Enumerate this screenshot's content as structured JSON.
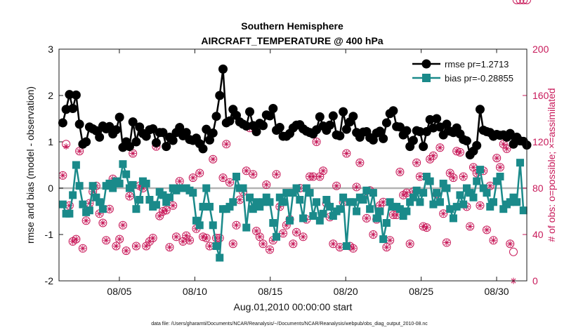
{
  "chart_data": {
    "type": "line",
    "title": "Southern Hemisphere",
    "subtitle": "AIRCRAFT_TEMPERATURE @ 400 hPa",
    "xlabel": "Aug.01,2010 00:00:00 start",
    "ylabel": "rmse and bias (model - observation)",
    "ylabel_right": "# of obs: o=possible; ×=assimilated",
    "footnote": "data file: /Users/gharamti/Documents/NCAR/Reanalysis/~/Documents/NCAR/Reanalysis/webpub/obs_diag_output_2010-08.nc",
    "xlim": [
      1.0,
      32.0
    ],
    "ylim": [
      -2,
      3
    ],
    "ylim_right": [
      0,
      200
    ],
    "x_ticks": [
      5,
      10,
      15,
      20,
      25,
      30
    ],
    "x_tick_labels": [
      "08/05",
      "08/10",
      "08/15",
      "08/20",
      "08/25",
      "08/30"
    ],
    "y_ticks": [
      -2,
      -1,
      0,
      1,
      2,
      3
    ],
    "y_ticks_right": [
      0,
      40,
      80,
      120,
      160,
      200
    ],
    "zero_line": 0,
    "legend": {
      "placement": "top-right"
    },
    "colors": {
      "rmse": "#000000",
      "bias": "#1a8a8a",
      "obs": "#c81a5a",
      "zero": "#b3b3b3"
    },
    "series": [
      {
        "name": "rmse pr=1.2713",
        "marker": "circle",
        "values": [
          1.41,
          1.7,
          2.02,
          1.72,
          2.01,
          1.38,
          0.95,
          1.0,
          1.32,
          1.28,
          1.24,
          1.1,
          1.34,
          1.28,
          1.33,
          1.17,
          1.26,
          1.53,
          0.88,
          1.0,
          0.9,
          1.43,
          1.0,
          1.32,
          1.18,
          1.12,
          1.26,
          1.28,
          0.98,
          1.2,
          1.2,
          0.9,
          1.1,
          1.03,
          1.2,
          1.31,
          1.13,
          1.2,
          1.05,
          1.03,
          1.08,
          0.96,
          0.85,
          1.27,
          1.04,
          1.19,
          1.55,
          2.0,
          2.57,
          1.41,
          1.45,
          1.7,
          1.57,
          1.43,
          1.38,
          1.34,
          1.65,
          1.35,
          1.22,
          1.4,
          1.35,
          1.58,
          1.56,
          1.72,
          1.25,
          1.31,
          1.12,
          1.12,
          1.18,
          1.3,
          1.36,
          1.37,
          1.28,
          1.23,
          1.2,
          1.17,
          1.26,
          1.54,
          1.34,
          1.25,
          1.36,
          1.56,
          1.15,
          1.13,
          1.65,
          1.27,
          1.43,
          1.55,
          1.2,
          1.1,
          1.21,
          1.22,
          1.09,
          1.04,
          1.19,
          1.23,
          1.07,
          1.41,
          1.61,
          1.67,
          1.33,
          1.32,
          1.15,
          1.24,
          0.9,
          1.03,
          1.24,
          1.22,
          0.9,
          1.22,
          1.48,
          1.3,
          1.5,
          1.32,
          1.15,
          1.38,
          1.23,
          1.2,
          1.3,
          1.17,
          1.05,
          1.02,
          0.72,
          0.8,
          0.92,
          1.7,
          1.25,
          1.22,
          1.2,
          1.12,
          1.16,
          1.14,
          1.15,
          1.1,
          1.18,
          0.95,
          1.1,
          1.02,
          1.01,
          0.93
        ]
      },
      {
        "name": "bias pr=-0.28855",
        "marker": "square",
        "values": [
          -0.35,
          -0.55,
          -0.55,
          -0.15,
          0.5,
          0.05,
          -0.35,
          -0.52,
          -0.48,
          0.05,
          -0.2,
          -0.3,
          -0.45,
          0.05,
          0.1,
          0.0,
          0.15,
          0.1,
          0.52,
          0.3,
          0.0,
          0.07,
          -0.45,
          -0.25,
          0.15,
          0.1,
          -0.25,
          -0.4,
          -0.36,
          -0.08,
          -0.15,
          -0.3,
          -0.2,
          0.0,
          -0.05,
          0.0,
          0.0,
          0.0,
          -0.05,
          -0.1,
          -0.7,
          -0.8,
          -0.4,
          0.0,
          -0.4,
          -0.8,
          -1.25,
          -1.5,
          -0.45,
          -0.45,
          -0.4,
          -0.3,
          0.25,
          0.0,
          0.0,
          -0.85,
          -0.2,
          -0.45,
          -0.3,
          -0.4,
          -0.3,
          -0.2,
          -0.3,
          -0.75,
          -1.05,
          -0.2,
          -0.3,
          -0.1,
          -0.7,
          -0.1,
          0.0,
          -0.25,
          -0.65,
          0.0,
          -0.1,
          -0.6,
          -0.3,
          -0.7,
          -0.55,
          -0.25,
          -0.4,
          -0.6,
          -0.5,
          -0.45,
          -0.2,
          -1.25,
          -0.3,
          -0.3,
          -0.5,
          -0.2,
          -0.25,
          -0.05,
          -0.45,
          -0.1,
          -0.65,
          -0.5,
          -1.1,
          -0.75,
          -0.3,
          -0.4,
          -0.4,
          -0.45,
          -0.6,
          -0.5,
          -0.3,
          -0.2,
          -0.05,
          -0.3,
          -0.1,
          0.25,
          0.15,
          -0.35,
          -0.1,
          -0.3,
          0.1,
          0.0,
          -0.45,
          -0.65,
          -0.4,
          -0.15,
          -0.35,
          0.0,
          -0.1,
          -0.2,
          0.15,
          0.4,
          0.0,
          -0.1,
          -0.4,
          -0.3,
          0.15,
          0.25,
          -0.45,
          -0.35,
          -0.3,
          -0.2,
          -0.3,
          0.55,
          -0.48
        ]
      },
      {
        "name": "obs possible",
        "marker": "circle-open",
        "axis": "right",
        "values": [
          91,
          118,
          65,
          34,
          36,
          112,
          28,
          52,
          67,
          77,
          82,
          58,
          50,
          35,
          62,
          88,
          30,
          36,
          48,
          26,
          73,
          110,
          30,
          82,
          80,
          30,
          34,
          37,
          116,
          56,
          60,
          61,
          29,
          65,
          38,
          86,
          34,
          39,
          35,
          89,
          45,
          93,
          38,
          37,
          30,
          105,
          37,
          37,
          89,
          118,
          85,
          32,
          48,
          70,
          77,
          95,
          132,
          92,
          43,
          38,
          32,
          83,
          27,
          35,
          92,
          64,
          41,
          48,
          53,
          32,
          42,
          80,
          38,
          53,
          90,
          90,
          120,
          90,
          95,
          67,
          55,
          32,
          82,
          29,
          68,
          110,
          30,
          28,
          81,
          102,
          72,
          54,
          78,
          40,
          53,
          65,
          68,
          29,
          35,
          57,
          57,
          94,
          74,
          76,
          32,
          77,
          102,
          90,
          47,
          46,
          105,
          108,
          75,
          115,
          58,
          33,
          93,
          89,
          112,
          111,
          90,
          64,
          47,
          98,
          93,
          65,
          95,
          44,
          82,
          35,
          106,
          98,
          118,
          114,
          32,
          25
        ]
      },
      {
        "name": "obs assimilated",
        "marker": "asterisk",
        "axis": "right",
        "values": [
          91,
          116,
          65,
          34,
          36,
          112,
          28,
          52,
          67,
          77,
          82,
          58,
          50,
          35,
          62,
          88,
          30,
          36,
          48,
          26,
          73,
          110,
          30,
          82,
          80,
          30,
          34,
          37,
          116,
          56,
          60,
          61,
          29,
          65,
          38,
          86,
          34,
          39,
          35,
          89,
          45,
          93,
          38,
          37,
          30,
          105,
          37,
          37,
          89,
          118,
          85,
          32,
          48,
          70,
          77,
          95,
          132,
          92,
          43,
          38,
          32,
          83,
          27,
          35,
          92,
          64,
          41,
          48,
          53,
          32,
          42,
          80,
          38,
          53,
          90,
          90,
          120,
          90,
          95,
          67,
          55,
          32,
          82,
          29,
          68,
          110,
          30,
          28,
          81,
          102,
          72,
          54,
          78,
          40,
          53,
          65,
          68,
          29,
          35,
          57,
          57,
          94,
          74,
          76,
          32,
          77,
          102,
          90,
          47,
          46,
          105,
          108,
          75,
          115,
          58,
          33,
          93,
          89,
          112,
          111,
          90,
          64,
          47,
          98,
          93,
          65,
          95,
          44,
          82,
          35,
          106,
          98,
          118,
          114,
          32,
          0
        ]
      }
    ]
  }
}
